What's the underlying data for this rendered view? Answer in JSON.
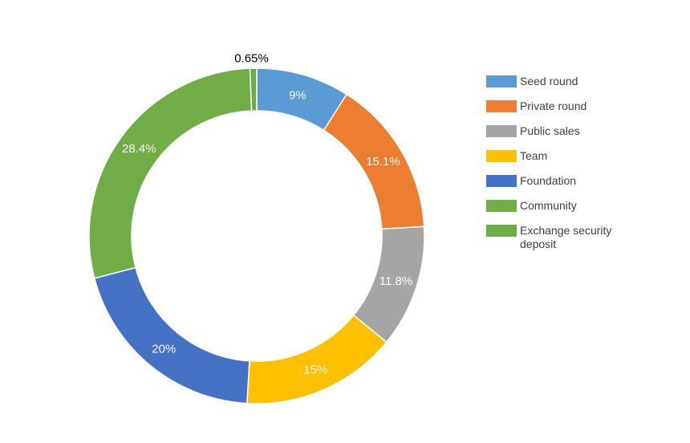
{
  "chart_data": {
    "type": "pie",
    "donut": true,
    "title": "",
    "legend_position": "right",
    "series": [
      {
        "name": "Seed round",
        "value": 9,
        "label": "9%",
        "color": "#5b9bd5",
        "label_color": "#ffffff"
      },
      {
        "name": "Private round",
        "value": 15.1,
        "label": "15.1%",
        "color": "#ed7d31",
        "label_color": "#ffffff"
      },
      {
        "name": "Public sales",
        "value": 11.8,
        "label": "11.8%",
        "color": "#a5a5a5",
        "label_color": "#ffffff"
      },
      {
        "name": "Team",
        "value": 15,
        "label": "15%",
        "color": "#ffc000",
        "label_color": "#ffffff"
      },
      {
        "name": "Foundation",
        "value": 20,
        "label": "20%",
        "color": "#4472c4",
        "label_color": "#ffffff"
      },
      {
        "name": "Community",
        "value": 28.4,
        "label": "28.4%",
        "color": "#70ad47",
        "label_color": "#ffffff"
      },
      {
        "name": "Exchange security deposit",
        "value": 0.65,
        "label": "0.65%",
        "color": "#70ad47",
        "label_color": "#000000"
      }
    ]
  }
}
